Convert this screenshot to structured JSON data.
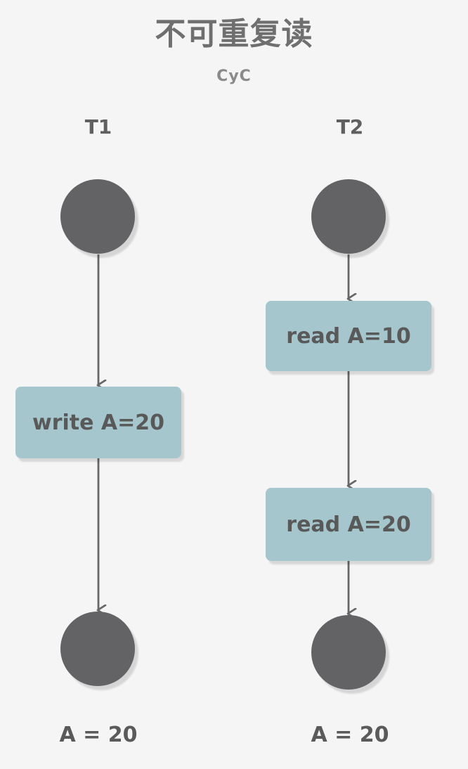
{
  "diagram": {
    "title": "不可重复读",
    "subtitle": "CyC",
    "lanes": [
      {
        "label": "T1",
        "operations": [
          "write A=20"
        ],
        "result": "A = 20"
      },
      {
        "label": "T2",
        "operations": [
          "read A=10",
          "read A=20"
        ],
        "result": "A = 20"
      }
    ]
  },
  "colors": {
    "background": "#f5f5f5",
    "node": "#636366",
    "box": "#a5c6cd",
    "arrow": "#666666",
    "text": "#595959"
  }
}
